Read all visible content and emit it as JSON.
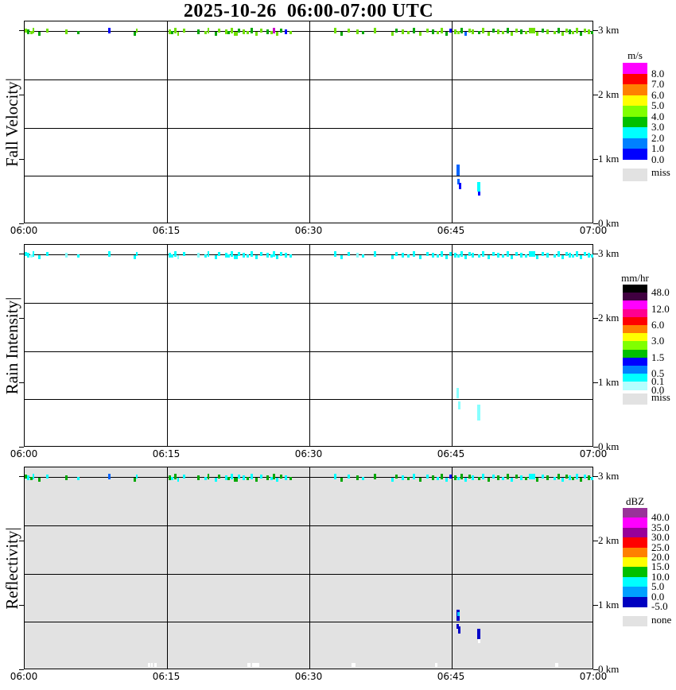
{
  "title": "2025-10-26  06:00-07:00 UTC",
  "chart_data": {
    "type": "heatmap",
    "title": "2025-10-26  06:00-07:00 UTC",
    "subtitle": "time-height precipitation quicklook, three stacked panels",
    "x_ticks": [
      "06:00",
      "06:15",
      "06:30",
      "06:45",
      "07:00"
    ],
    "km_labels": [
      "3 km",
      "2 km",
      "1 km",
      "0 km"
    ],
    "height_range_km": [
      0,
      3.2
    ],
    "panels": [
      {
        "label": "Fall Velocity|",
        "units": "m/s",
        "bg": "#FFFFFF",
        "colorbar_title": "m/s",
        "colorbar": [
          [
            "#FF00FF",
            "8.0"
          ],
          [
            "#FF0000",
            "7.0"
          ],
          [
            "#FF8000",
            "6.0"
          ],
          [
            "#FFFF00",
            "5.0"
          ],
          [
            "#80FF00",
            "4.0"
          ],
          [
            "#00C000",
            "3.0"
          ],
          [
            "#00FFFF",
            "2.0"
          ],
          [
            "#0080FF",
            "1.0"
          ],
          [
            "#0000FF",
            "0.0"
          ]
        ],
        "missing": [
          "#E2E2E2",
          "miss"
        ]
      },
      {
        "label": "Rain Intensity|",
        "units": "mm/hr",
        "bg": "#FFFFFF",
        "colorbar_title": "mm/hr",
        "colorbar": [
          [
            "#000000",
            "48.0"
          ],
          [
            "#400040",
            ""
          ],
          [
            "#FF00FF",
            "12.0"
          ],
          [
            "#FF0090",
            ""
          ],
          [
            "#FF0000",
            "6.0"
          ],
          [
            "#FF8000",
            ""
          ],
          [
            "#FFFF00",
            "3.0"
          ],
          [
            "#80FF00",
            ""
          ],
          [
            "#00C000",
            "1.5"
          ],
          [
            "#0000FF",
            ""
          ],
          [
            "#0080FF",
            "0.5"
          ],
          [
            "#00FFFF",
            "0.1"
          ],
          [
            "#B4FFFF",
            "0.0"
          ]
        ],
        "missing": [
          "#E2E2E2",
          "miss"
        ]
      },
      {
        "label": "Reflectivity|",
        "units": "dBZ",
        "bg": "#E2E2E2",
        "colorbar_title": "dBZ",
        "colorbar": [
          [
            "#993399",
            "40.0"
          ],
          [
            "#FF00FF",
            "35.0"
          ],
          [
            "#990099",
            "30.0"
          ],
          [
            "#FF0000",
            "25.0"
          ],
          [
            "#FF8000",
            "20.0"
          ],
          [
            "#FFFF00",
            "15.0"
          ],
          [
            "#00C000",
            "10.0"
          ],
          [
            "#00FFFF",
            "5.0"
          ],
          [
            "#00A0FF",
            "0.0"
          ],
          [
            "#0000C0",
            "-5.0"
          ]
        ],
        "missing": [
          "#E2E2E2",
          "none"
        ]
      }
    ],
    "palette": {
      "l": "#70E000",
      "g": "#00A800",
      "b": "#0000FF",
      "d": "#0064FF",
      "c": "#00FFFF",
      "p": "#87FFFF",
      "m": "#C800C8",
      "n": "#0000C8",
      "s": "#00C8FF",
      "w": "#FFFFFF"
    },
    "echo_band_3km": {
      "description": "Intermittent shallow echo band at ~3 km across the full hour; fall velocity mostly 3-5 m/s (green/lime), rain intensity ~0-0.1 mm/hr (cyan), reflectivity ~0-10 dBZ (green/cyan); band densifies after 06:45.",
      "mark_format": [
        "x_px_from_plot_left",
        "width_px",
        "color_fall_velocity",
        "color_rain_intensity",
        "color_reflectivity"
      ],
      "marks": [
        [
          1,
          3,
          "l",
          "c",
          "g"
        ],
        [
          4,
          3,
          "g",
          "c",
          "c"
        ],
        [
          8,
          3,
          "l",
          "p",
          "g"
        ],
        [
          11,
          2,
          "l",
          "c",
          "c"
        ],
        [
          18,
          3,
          "g",
          "c",
          "g"
        ],
        [
          28,
          3,
          "l",
          "c",
          "c"
        ],
        [
          52,
          3,
          "l",
          "p",
          "g"
        ],
        [
          67,
          3,
          "g",
          "c",
          "c"
        ],
        [
          106,
          3,
          "b",
          "c",
          "d"
        ],
        [
          138,
          3,
          "g",
          "c",
          "g"
        ],
        [
          141,
          2,
          "l",
          "c",
          "c"
        ],
        [
          182,
          3,
          "l",
          "c",
          "g"
        ],
        [
          185,
          3,
          "g",
          "c",
          "c"
        ],
        [
          189,
          3,
          "l",
          "c",
          "g"
        ],
        [
          193,
          2,
          "l",
          "p",
          "c"
        ],
        [
          200,
          3,
          "l",
          "c",
          "c"
        ],
        [
          218,
          3,
          "g",
          "p",
          "g"
        ],
        [
          227,
          3,
          "l",
          "c",
          "c"
        ],
        [
          231,
          2,
          "l",
          "c",
          "g"
        ],
        [
          240,
          3,
          "g",
          "c",
          "c"
        ],
        [
          244,
          3,
          "l",
          "c",
          "g"
        ],
        [
          253,
          3,
          "l",
          "c",
          "c"
        ],
        [
          256,
          3,
          "g",
          "c",
          "g"
        ],
        [
          260,
          3,
          "l",
          "c",
          "c"
        ],
        [
          264,
          5,
          "l",
          "c",
          "g"
        ],
        [
          269,
          3,
          "g",
          "c",
          "c"
        ],
        [
          275,
          3,
          "l",
          "c",
          "c"
        ],
        [
          280,
          3,
          "l",
          "c",
          "g"
        ],
        [
          285,
          3,
          "g",
          "c",
          "c"
        ],
        [
          291,
          3,
          "l",
          "c",
          "g"
        ],
        [
          297,
          3,
          "l",
          "c",
          "c"
        ],
        [
          305,
          3,
          "g",
          "c",
          "g"
        ],
        [
          310,
          3,
          "l",
          "c",
          "c"
        ],
        [
          313,
          3,
          "m",
          "c",
          "g"
        ],
        [
          317,
          3,
          "l",
          "c",
          "c"
        ],
        [
          322,
          3,
          "g",
          "c",
          "g"
        ],
        [
          328,
          3,
          "b",
          "c",
          "c"
        ],
        [
          334,
          3,
          "l",
          "c",
          "g"
        ],
        [
          390,
          3,
          "l",
          "c",
          "c"
        ],
        [
          398,
          3,
          "g",
          "c",
          "g"
        ],
        [
          407,
          3,
          "l",
          "c",
          "c"
        ],
        [
          418,
          3,
          "l",
          "p",
          "g"
        ],
        [
          425,
          3,
          "g",
          "c",
          "c"
        ],
        [
          440,
          3,
          "l",
          "c",
          "g"
        ],
        [
          462,
          3,
          "l",
          "c",
          "c"
        ],
        [
          467,
          3,
          "g",
          "c",
          "g"
        ],
        [
          475,
          3,
          "l",
          "c",
          "c"
        ],
        [
          482,
          3,
          "l",
          "c",
          "g"
        ],
        [
          489,
          3,
          "g",
          "c",
          "c"
        ],
        [
          497,
          3,
          "l",
          "c",
          "g"
        ],
        [
          506,
          3,
          "l",
          "c",
          "c"
        ],
        [
          513,
          3,
          "g",
          "c",
          "g"
        ],
        [
          519,
          3,
          "l",
          "c",
          "c"
        ],
        [
          524,
          3,
          "l",
          "c",
          "g"
        ],
        [
          530,
          3,
          "g",
          "c",
          "c"
        ],
        [
          535,
          3,
          "b",
          "c",
          "b"
        ],
        [
          541,
          3,
          "l",
          "c",
          "g"
        ],
        [
          545,
          3,
          "l",
          "c",
          "c"
        ],
        [
          549,
          3,
          "g",
          "c",
          "g"
        ],
        [
          554,
          3,
          "d",
          "c",
          "c"
        ],
        [
          559,
          3,
          "l",
          "c",
          "g"
        ],
        [
          563,
          3,
          "l",
          "c",
          "c"
        ],
        [
          571,
          3,
          "g",
          "c",
          "g"
        ],
        [
          576,
          3,
          "l",
          "c",
          "c"
        ],
        [
          583,
          3,
          "l",
          "c",
          "g"
        ],
        [
          589,
          3,
          "g",
          "c",
          "c"
        ],
        [
          595,
          3,
          "l",
          "c",
          "g"
        ],
        [
          601,
          3,
          "l",
          "c",
          "c"
        ],
        [
          607,
          3,
          "g",
          "c",
          "g"
        ],
        [
          612,
          3,
          "l",
          "c",
          "c"
        ],
        [
          618,
          3,
          "l",
          "c",
          "g"
        ],
        [
          624,
          3,
          "g",
          "c",
          "c"
        ],
        [
          630,
          3,
          "l",
          "c",
          "g"
        ],
        [
          635,
          8,
          "l",
          "c",
          "c"
        ],
        [
          644,
          3,
          "l",
          "c",
          "g"
        ],
        [
          651,
          3,
          "g",
          "c",
          "c"
        ],
        [
          657,
          3,
          "l",
          "c",
          "g"
        ],
        [
          666,
          3,
          "l",
          "c",
          "c"
        ],
        [
          671,
          3,
          "g",
          "c",
          "g"
        ],
        [
          676,
          3,
          "l",
          "c",
          "c"
        ],
        [
          681,
          3,
          "l",
          "c",
          "g"
        ],
        [
          685,
          3,
          "g",
          "c",
          "c"
        ],
        [
          689,
          3,
          "l",
          "c",
          "g"
        ],
        [
          694,
          3,
          "l",
          "c",
          "c"
        ],
        [
          699,
          3,
          "g",
          "c",
          "g"
        ],
        [
          704,
          3,
          "l",
          "c",
          "c"
        ],
        [
          709,
          3,
          "l",
          "c",
          "g"
        ],
        [
          713,
          3,
          "g",
          "c",
          "c"
        ]
      ]
    },
    "low_level_event": {
      "description": "Brief shallow echo at ~0.6-0.95 km around 06:45-06:48: fall velocity ~1-2 m/s (blue), rain intensity ~0-0.1 mm/hr (pale cyan), reflectivity ~-5-0 dBZ (dark blue).",
      "streak_format": [
        "x_px_from_plot_left",
        "y_px_from_panel_top",
        "width_px",
        "height_px",
        "color_key"
      ],
      "streaks": {
        "fall_velocity": [
          [
            543,
            180,
            4,
            14,
            "d"
          ],
          [
            544,
            198,
            3,
            7,
            "d"
          ],
          [
            546,
            203,
            3,
            8,
            "b"
          ],
          [
            569,
            202,
            4,
            12,
            "c"
          ],
          [
            570,
            214,
            3,
            5,
            "b"
          ]
        ],
        "rain_intensity": [
          [
            543,
            180,
            3,
            13,
            "p"
          ],
          [
            545,
            197,
            3,
            10,
            "p"
          ],
          [
            569,
            201,
            4,
            20,
            "p"
          ]
        ],
        "reflectivity": [
          [
            543,
            179,
            4,
            14,
            "n"
          ],
          [
            544,
            182,
            3,
            5,
            "s"
          ],
          [
            543,
            197,
            3,
            6,
            "n"
          ],
          [
            545,
            200,
            3,
            9,
            "n"
          ],
          [
            569,
            203,
            4,
            13,
            "n"
          ],
          [
            570,
            216,
            3,
            5,
            "w"
          ]
        ]
      }
    },
    "reflectivity_bottom_marks": {
      "description": "small white (no-echo) marks just above 0 km in the Reflectivity panel",
      "marks": [
        [
          155,
          3
        ],
        [
          159,
          2
        ],
        [
          163,
          3
        ],
        [
          280,
          4
        ],
        [
          286,
          9
        ],
        [
          411,
          5
        ],
        [
          516,
          3
        ],
        [
          667,
          4
        ]
      ]
    }
  }
}
